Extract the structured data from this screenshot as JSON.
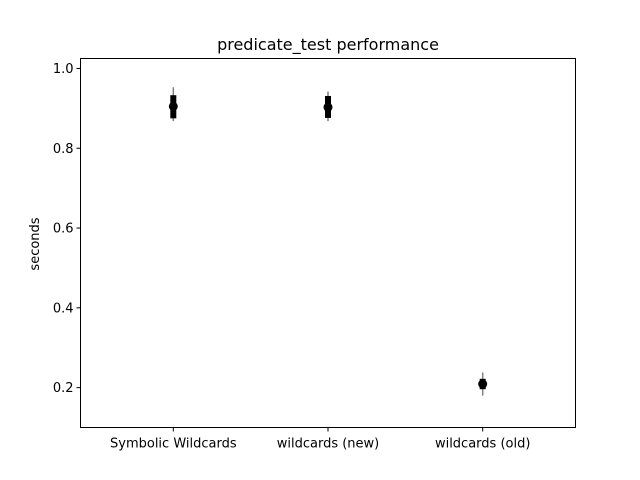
{
  "chart_data": {
    "type": "scatter",
    "title": "predicate_test performance",
    "xlabel": "",
    "ylabel": "seconds",
    "categories": [
      "Symbolic Wildcards",
      "wildcards (new)",
      "wildcards (old)"
    ],
    "yticks": [
      "0.2",
      "0.4",
      "0.6",
      "0.8",
      "1.0"
    ],
    "ylim": [
      0.1,
      1.025
    ],
    "grid": false,
    "points": [
      {
        "category": "Symbolic Wildcards",
        "value": 0.905,
        "err_inner": [
          0.875,
          0.933
        ],
        "err_outer": [
          0.868,
          0.953
        ]
      },
      {
        "category": "wildcards (new)",
        "value": 0.903,
        "err_inner": [
          0.876,
          0.931
        ],
        "err_outer": [
          0.868,
          0.942
        ]
      },
      {
        "category": "wildcards (old)",
        "value": 0.209,
        "err_inner": [
          0.196,
          0.222
        ],
        "err_outer": [
          0.18,
          0.238
        ]
      }
    ],
    "colors": {
      "marker": "#000000",
      "inner_error": "#000000",
      "outer_error": "#808080",
      "axes": "#000000"
    }
  }
}
